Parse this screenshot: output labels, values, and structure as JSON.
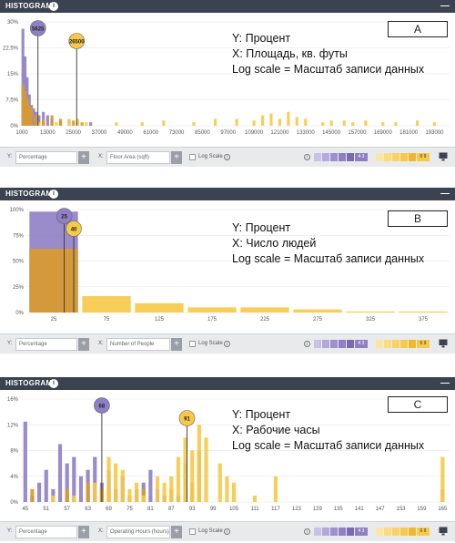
{
  "colors": {
    "purple": "#8f7fc4",
    "yellow": "#f7c948",
    "orange": "#d99a2b",
    "header": "#3b4250",
    "grid": "#e2e2e2"
  },
  "panels": [
    {
      "id": "A",
      "header_title": "HISTOGRAM",
      "tag": "A",
      "note_lines": [
        "Y: Процент",
        "X: Площадь, кв. футы",
        "Log scale = Масштаб записи данных"
      ],
      "markers": [
        {
          "label": "5625",
          "color": "purple",
          "x": 8500
        },
        {
          "label": "26500",
          "color": "yellow",
          "x": 26500
        }
      ],
      "controls": {
        "y_label": "Y:",
        "y_value": "Percentage",
        "x_label": "X:",
        "x_value": "Floor Area (sqft)",
        "log_label": "Log Scale",
        "purple_count": "4 3",
        "yellow_count": "6 9"
      },
      "chart_data": {
        "type": "bar",
        "xlabel": "",
        "ylabel": "",
        "yticks": [
          "0%",
          "7.5%",
          "15%",
          "22.5%",
          "30%"
        ],
        "ylim": [
          0,
          30
        ],
        "xticks": [
          "1000",
          "13000",
          "25000",
          "37000",
          "49000",
          "61000",
          "73000",
          "85000",
          "97000",
          "109000",
          "121000",
          "133000",
          "145000",
          "157000",
          "169000",
          "181000",
          "193000"
        ],
        "xlim": [
          1000,
          200000
        ],
        "series": [
          {
            "color": "purple",
            "x": [
              1500,
              2500,
              3500,
              4500,
              5500,
              6500,
              7500,
              9000,
              11000,
              13000,
              15000,
              19000,
              23000,
              27000,
              33000
            ],
            "values": [
              28,
              20,
              14,
              9,
              6,
              5,
              4,
              3,
              4,
              3,
              2,
              1.5,
              1.5,
              1,
              1
            ]
          },
          {
            "color": "orange",
            "x": [
              1500,
              2500,
              3500,
              4500,
              5500,
              7500,
              11000,
              15000,
              19000,
              25000,
              29000
            ],
            "values": [
              12,
              10,
              8,
              6,
              5,
              3,
              2,
              3,
              2,
              1.5,
              1
            ]
          },
          {
            "color": "yellow",
            "x": [
              9000,
              17000,
              23000,
              27000,
              31000,
              45000,
              57000,
              67000,
              81000,
              91000,
              101000,
              109000,
              113000,
              117000,
              121000,
              125000,
              129000,
              133000,
              141000,
              145000,
              151000,
              155000,
              161000,
              169000,
              175000,
              185000,
              193000
            ],
            "values": [
              1,
              1,
              2,
              2,
              1,
              1,
              1,
              1.5,
              1,
              2,
              2,
              1.5,
              3,
              3.5,
              2,
              4,
              2.5,
              2,
              1,
              1.5,
              1.5,
              1,
              1.5,
              1,
              1,
              1.5,
              1
            ]
          }
        ]
      }
    },
    {
      "id": "B",
      "header_title": "HISTOGRAM",
      "tag": "B",
      "note_lines": [
        "Y: Процент",
        "X: Число людей",
        "Log scale = Масштаб записи данных"
      ],
      "markers": [
        {
          "label": "25",
          "color": "purple",
          "x": 35
        },
        {
          "label": "40",
          "color": "yellow",
          "x": 44
        }
      ],
      "controls": {
        "y_label": "Y:",
        "y_value": "Percentage",
        "x_label": "X:",
        "x_value": "Number of People",
        "log_label": "Log Scale",
        "purple_count": "4 3",
        "yellow_count": "6 9"
      },
      "chart_data": {
        "type": "bar",
        "xlabel": "",
        "ylabel": "",
        "yticks": [
          "0%",
          "25%",
          "50%",
          "75%",
          "100%"
        ],
        "ylim": [
          0,
          100
        ],
        "xticks": [
          "25",
          "75",
          "125",
          "175",
          "225",
          "275",
          "325",
          "375"
        ],
        "xlim": [
          0,
          400
        ],
        "series": [
          {
            "color": "purple",
            "x": [
              25
            ],
            "values": [
              98
            ]
          },
          {
            "color": "orange",
            "x": [
              25
            ],
            "values": [
              62
            ]
          },
          {
            "color": "yellow",
            "x": [
              75,
              125,
              175,
              225,
              275,
              325,
              375
            ],
            "values": [
              16,
              9,
              5,
              5,
              3,
              1,
              1
            ]
          }
        ]
      }
    },
    {
      "id": "C",
      "header_title": "HISTOGRAM",
      "tag": "C",
      "note_lines": [
        "Y: Процент",
        "X: Рабочие часы",
        "Log scale = Масштаб записи данных"
      ],
      "markers": [
        {
          "label": "68",
          "color": "purple",
          "x": 67
        },
        {
          "label": "91",
          "color": "yellow",
          "x": 91.5
        }
      ],
      "controls": {
        "y_label": "Y:",
        "y_value": "Percentage",
        "x_label": "X:",
        "x_value": "Operating Hours (hours)",
        "log_label": "Log Scale",
        "purple_count": "4 3",
        "yellow_count": "6 9"
      },
      "chart_data": {
        "type": "bar",
        "xlabel": "",
        "ylabel": "",
        "yticks": [
          "0%",
          "4%",
          "8%",
          "12%",
          "16%"
        ],
        "ylim": [
          0,
          16
        ],
        "xticks": [
          "45",
          "51",
          "57",
          "63",
          "69",
          "75",
          "81",
          "87",
          "93",
          "99",
          "105",
          "111",
          "117",
          "123",
          "129",
          "135",
          "141",
          "147",
          "153",
          "159",
          "165"
        ],
        "xlim": [
          44,
          167
        ],
        "series": [
          {
            "color": "purple",
            "x": [
              45,
              47,
              49,
              51,
              53,
              55,
              57,
              59,
              61,
              63,
              65,
              67,
              69,
              71,
              73,
              77,
              79,
              81,
              83,
              85,
              89
            ],
            "values": [
              12.5,
              1,
              3,
              5,
              2,
              9,
              6,
              7,
              4,
              5,
              7,
              3,
              5,
              2,
              4,
              2,
              3,
              5,
              2,
              1,
              1
            ]
          },
          {
            "color": "orange",
            "x": [
              47,
              57,
              63,
              67,
              69,
              75,
              79,
              87,
              91,
              93,
              95,
              165
            ],
            "values": [
              2,
              2,
              3,
              2,
              2,
              1,
              2,
              2,
              6,
              3,
              8,
              2
            ]
          },
          {
            "color": "yellow",
            "x": [
              53,
              59,
              65,
              69,
              71,
              73,
              75,
              77,
              79,
              83,
              85,
              87,
              89,
              91,
              93,
              95,
              97,
              101,
              103,
              105,
              111,
              117,
              165
            ],
            "values": [
              1,
              1,
              3,
              7,
              6,
              5,
              2,
              3,
              1,
              4,
              3,
              4,
              7,
              10,
              8,
              12,
              10,
              6,
              4,
              3,
              1,
              4,
              7
            ]
          }
        ]
      }
    }
  ]
}
